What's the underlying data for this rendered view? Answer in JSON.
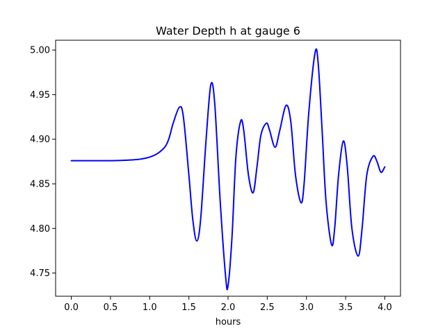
{
  "chart_data": {
    "type": "line",
    "title": "Water Depth h at gauge 6",
    "xlabel": "hours",
    "ylabel": "",
    "xlim": [
      -0.2,
      4.2
    ],
    "ylim": [
      4.724,
      5.011
    ],
    "xticks": [
      0.0,
      0.5,
      1.0,
      1.5,
      2.0,
      2.5,
      3.0,
      3.5,
      4.0
    ],
    "xtick_labels": [
      "0.0",
      "0.5",
      "1.0",
      "1.5",
      "2.0",
      "2.5",
      "3.0",
      "3.5",
      "4.0"
    ],
    "yticks": [
      4.75,
      4.8,
      4.85,
      4.9,
      4.95,
      5.0
    ],
    "ytick_labels": [
      "4.75",
      "4.80",
      "4.85",
      "4.90",
      "4.95",
      "5.00"
    ],
    "grid": false,
    "series": [
      {
        "color": "#0000ff",
        "x": [
          0.0,
          0.5,
          0.8,
          0.9,
          1.0,
          1.1,
          1.2,
          1.25,
          1.3,
          1.38,
          1.43,
          1.5,
          1.55,
          1.6,
          1.65,
          1.72,
          1.78,
          1.83,
          1.9,
          1.97,
          2.0,
          2.05,
          2.1,
          2.16,
          2.2,
          2.26,
          2.32,
          2.37,
          2.42,
          2.49,
          2.53,
          2.6,
          2.66,
          2.74,
          2.8,
          2.86,
          2.93,
          2.97,
          3.03,
          3.11,
          3.15,
          3.2,
          3.25,
          3.32,
          3.36,
          3.41,
          3.47,
          3.52,
          3.58,
          3.66,
          3.71,
          3.77,
          3.85,
          3.9,
          3.95,
          4.0
        ],
        "y": [
          4.876,
          4.876,
          4.877,
          4.878,
          4.88,
          4.884,
          4.892,
          4.902,
          4.918,
          4.936,
          4.925,
          4.86,
          4.81,
          4.786,
          4.81,
          4.9,
          4.961,
          4.94,
          4.83,
          4.745,
          4.736,
          4.79,
          4.88,
          4.92,
          4.91,
          4.86,
          4.84,
          4.87,
          4.905,
          4.918,
          4.91,
          4.891,
          4.91,
          4.938,
          4.92,
          4.86,
          4.829,
          4.85,
          4.93,
          4.997,
          4.985,
          4.91,
          4.83,
          4.782,
          4.8,
          4.86,
          4.898,
          4.87,
          4.8,
          4.769,
          4.8,
          4.86,
          4.881,
          4.875,
          4.863,
          4.869
        ]
      }
    ]
  }
}
